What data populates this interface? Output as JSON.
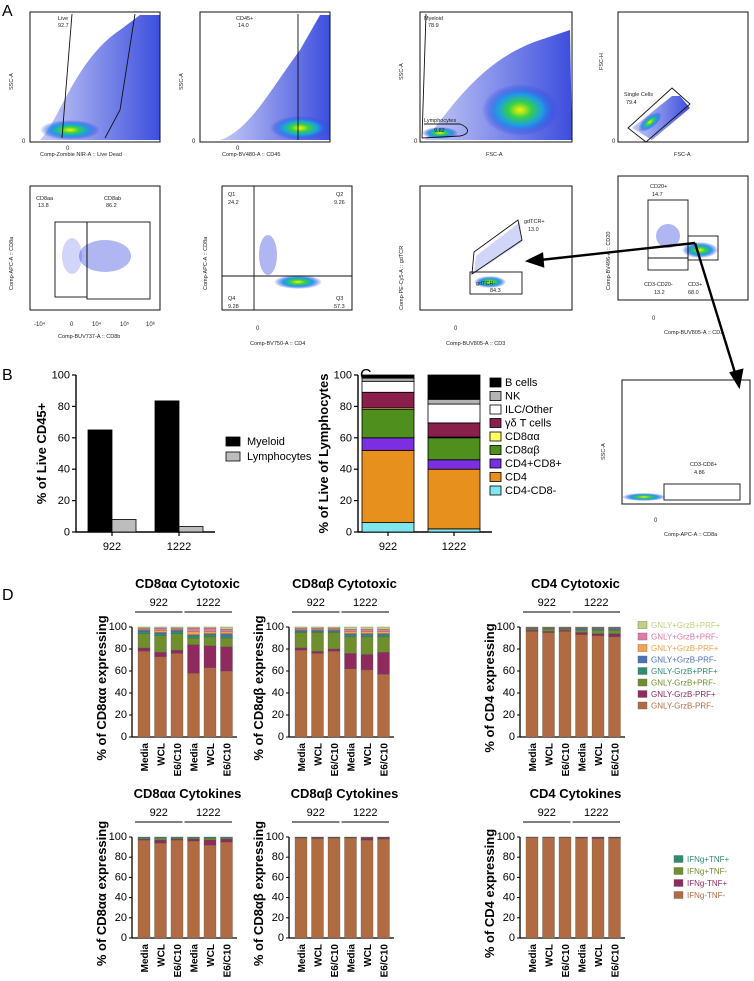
{
  "panel_labels": [
    "A",
    "B",
    "C",
    "D"
  ],
  "flow": {
    "plots": [
      {
        "xlabel": "Comp-Zombie NIR-A :: Live Dead",
        "ylabel": "SSC-A",
        "gates": [
          {
            "name": "Live",
            "value": "92.7"
          }
        ],
        "ticks": [
          "0",
          "0"
        ]
      },
      {
        "xlabel": "Comp-BV480-A :: CD45",
        "ylabel": "SSC-A",
        "gates": [
          {
            "name": "CD45+",
            "value": "14.0"
          }
        ],
        "ticks": [
          "0",
          "0"
        ]
      },
      {
        "xlabel": "FSC-A",
        "ylabel": "SSC-A",
        "gates": [
          {
            "name": "Myeloid",
            "value": "78.9"
          },
          {
            "name": "Lymphocytes",
            "value": "9.82"
          }
        ],
        "ticks": [
          "0",
          "0"
        ]
      },
      {
        "xlabel": "FSC-A",
        "ylabel": "FSC-H",
        "gates": [
          {
            "name": "Single Cells",
            "value": "79.4"
          }
        ],
        "ticks": [
          "0",
          "0"
        ]
      },
      {
        "xlabel": "Comp-BUV737-A :: CD8b",
        "ylabel": "Comp-APC-A :: CD8a",
        "gates": [
          {
            "name": "CD8aa",
            "value": "13.8"
          },
          {
            "name": "CD8ab",
            "value": "86.2"
          }
        ],
        "ticks": [
          "-10⁴",
          "0",
          "10⁴",
          "10⁵",
          "10⁶"
        ]
      },
      {
        "xlabel": "Comp-BV750-A :: CD4",
        "ylabel": "Comp-APC-A :: CD8a",
        "gates": [
          {
            "name": "Q1",
            "value": "24.2"
          },
          {
            "name": "Q2",
            "value": "9.26"
          },
          {
            "name": "Q4",
            "value": "9.28"
          },
          {
            "name": "Q3",
            "value": "57.3"
          }
        ],
        "ticks": [
          "0"
        ]
      },
      {
        "xlabel": "Comp-BUV805-A :: CD3",
        "ylabel": "Comp-PE-Cy5-A :: gdTCR",
        "gates": [
          {
            "name": "gdTCR+",
            "value": "13.0"
          },
          {
            "name": "gdTCR-",
            "value": "84.3"
          }
        ],
        "ticks": [
          "0"
        ]
      },
      {
        "xlabel": "Comp-BUV805-A :: CD3",
        "ylabel": "Comp-BV496-A :: CD20",
        "gates": [
          {
            "name": "CD20+",
            "value": "14.7"
          },
          {
            "name": "CD3-CD20-",
            "value": "13.2"
          },
          {
            "name": "CD3+",
            "value": "68.0"
          }
        ],
        "ticks": [
          "0"
        ]
      },
      {
        "xlabel": "Comp-APC-A :: CD8a",
        "ylabel": "SSC-A",
        "gates": [
          {
            "name": "CD3-CD8+",
            "value": "4.86"
          }
        ],
        "ticks": [
          "0"
        ]
      }
    ]
  },
  "colors": {
    "myeloid": "#000000",
    "lymphocytes": "#bdbdbd",
    "bcells": "#000000",
    "nk": "#b4b4b4",
    "ilc": "#ffffff",
    "gdt": "#8b1f4b",
    "cd8aa": "#ffff66",
    "cd8ab": "#4e8f1e",
    "cd4cd8": "#7b2fe0",
    "cd4": "#e8901e",
    "dn": "#7fe7ee",
    "gnly_pos_grzb_pos_prf_pos": "#c3cf7e",
    "gnly_pos_grzb_pos_prf_neg": "#e07aa6",
    "gnly_pos_grzb_neg_prf_pos": "#f4a24e",
    "gnly_pos_grzb_neg_prf_neg": "#4b6fb8",
    "gnly_neg_grzb_pos_prf_pos": "#2e8c73",
    "gnly_neg_grzb_pos_prf_neg": "#6f8e2c",
    "gnly_neg_grzb_neg_prf_pos": "#8e2a5e",
    "gnly_neg_grzb_neg_prf_neg": "#b06b42",
    "ifng_pos_tnf_pos": "#2e8c73",
    "ifng_pos_tnf_neg": "#6f8e2c",
    "ifng_neg_tnf_pos": "#8e2a5e",
    "ifng_neg_tnf_neg": "#b06b42"
  },
  "chart_data": [
    {
      "id": "B",
      "type": "bar",
      "categories": [
        "922",
        "1222"
      ],
      "series": [
        {
          "name": "Myeloid",
          "color_key": "myeloid",
          "values": [
            65,
            83.5
          ]
        },
        {
          "name": "Lymphocytes",
          "color_key": "lymphocytes",
          "values": [
            8,
            3.5
          ]
        }
      ],
      "ylabel": "% of Live CD45+",
      "ylim": [
        0,
        100
      ],
      "yticks": [
        "0",
        "20",
        "40",
        "60",
        "80",
        "100"
      ]
    },
    {
      "id": "C",
      "type": "bar",
      "categories": [
        "922",
        "1222"
      ],
      "series": [
        {
          "name": "CD4-CD8-",
          "color_key": "dn",
          "values": [
            6,
            2
          ]
        },
        {
          "name": "CD4",
          "color_key": "cd4",
          "values": [
            46,
            38
          ]
        },
        {
          "name": "CD4+CD8+",
          "color_key": "cd4cd8",
          "values": [
            8,
            6
          ]
        },
        {
          "name": "CD8αβ",
          "color_key": "cd8ab",
          "values": [
            18,
            14
          ]
        },
        {
          "name": "CD8αα",
          "color_key": "cd8aa",
          "values": [
            1,
            0.5
          ]
        },
        {
          "name": "γδ T cells",
          "color_key": "gdt",
          "values": [
            10,
            9
          ]
        },
        {
          "name": "ILC/Other",
          "color_key": "ilc",
          "values": [
            7,
            12
          ]
        },
        {
          "name": "NK",
          "color_key": "nk",
          "values": [
            2,
            3
          ]
        },
        {
          "name": "B cells",
          "color_key": "bcells",
          "values": [
            2,
            15.5
          ]
        }
      ],
      "legend_order": [
        "B cells",
        "NK",
        "ILC/Other",
        "γδ T cells",
        "CD8αα",
        "CD8αβ",
        "CD4+CD8+",
        "CD4",
        "CD4-CD8-"
      ],
      "ylabel": "% of Live of Lymphocytes",
      "ylim": [
        0,
        100
      ],
      "yticks": [
        "0",
        "20",
        "40",
        "60",
        "80",
        "100"
      ]
    },
    {
      "id": "D1",
      "type": "bar",
      "title": "CD8αα Cytotoxic",
      "ylabel": "% of CD8αα expressing",
      "groups": [
        "922",
        "1222"
      ],
      "categories": [
        "Media",
        "WCL",
        "E6/C10",
        "Media",
        "WCL",
        "E6/C10"
      ],
      "ylim": [
        0,
        100
      ],
      "yticks": [
        "0",
        "20",
        "40",
        "60",
        "80",
        "100"
      ],
      "series": [
        {
          "name": "GNLY-GrzB-PRF-",
          "color_key": "gnly_neg_grzb_neg_prf_neg",
          "values": [
            78,
            73,
            76,
            58,
            63,
            60
          ]
        },
        {
          "name": "GNLY-GrzB-PRF+",
          "color_key": "gnly_neg_grzb_neg_prf_pos",
          "values": [
            3,
            4,
            3,
            26,
            20,
            22
          ]
        },
        {
          "name": "GNLY-GrzB+PRF-",
          "color_key": "gnly_neg_grzb_pos_prf_neg",
          "values": [
            13,
            15,
            15,
            6,
            8,
            8
          ]
        },
        {
          "name": "GNLY-GrzB+PRF+",
          "color_key": "gnly_neg_grzb_pos_prf_pos",
          "values": [
            2,
            2,
            2,
            2,
            2,
            2
          ]
        },
        {
          "name": "GNLY+GrzB-PRF-",
          "color_key": "gnly_pos_grzb_neg_prf_neg",
          "values": [
            1,
            1,
            1,
            1,
            1,
            2
          ]
        },
        {
          "name": "GNLY+GrzB-PRF+",
          "color_key": "gnly_pos_grzb_neg_prf_pos",
          "values": [
            1,
            2,
            1,
            3,
            2,
            2
          ]
        },
        {
          "name": "GNLY+GrzB+PRF-",
          "color_key": "gnly_pos_grzb_pos_prf_neg",
          "values": [
            1,
            2,
            1,
            3,
            3,
            2
          ]
        },
        {
          "name": "GNLY+GrzB+PRF+",
          "color_key": "gnly_pos_grzb_pos_prf_pos",
          "values": [
            1,
            1,
            1,
            1,
            1,
            2
          ]
        }
      ]
    },
    {
      "id": "D2",
      "type": "bar",
      "title": "CD8αβ Cytotoxic",
      "ylabel": "% of CD8αβ expressing",
      "groups": [
        "922",
        "1222"
      ],
      "categories": [
        "Media",
        "WCL",
        "E6/C10",
        "Media",
        "WCL",
        "E6/C10"
      ],
      "ylim": [
        0,
        100
      ],
      "yticks": [
        "0",
        "20",
        "40",
        "60",
        "80",
        "100"
      ],
      "series": [
        {
          "name": "GNLY-GrzB-PRF-",
          "color_key": "gnly_neg_grzb_neg_prf_neg",
          "values": [
            79,
            76,
            78,
            62,
            61,
            57
          ]
        },
        {
          "name": "GNLY-GrzB-PRF+",
          "color_key": "gnly_neg_grzb_neg_prf_pos",
          "values": [
            2,
            2,
            2,
            14,
            14,
            20
          ]
        },
        {
          "name": "GNLY-GrzB+PRF-",
          "color_key": "gnly_neg_grzb_pos_prf_neg",
          "values": [
            14,
            17,
            15,
            15,
            16,
            14
          ]
        },
        {
          "name": "GNLY-GrzB+PRF+",
          "color_key": "gnly_neg_grzb_pos_prf_pos",
          "values": [
            1,
            1,
            1,
            2,
            2,
            2
          ]
        },
        {
          "name": "GNLY+GrzB-PRF-",
          "color_key": "gnly_pos_grzb_neg_prf_neg",
          "values": [
            1,
            1,
            1,
            1,
            1,
            1
          ]
        },
        {
          "name": "GNLY+GrzB-PRF+",
          "color_key": "gnly_pos_grzb_neg_prf_pos",
          "values": [
            1,
            1,
            1,
            2,
            2,
            2
          ]
        },
        {
          "name": "GNLY+GrzB+PRF-",
          "color_key": "gnly_pos_grzb_pos_prf_neg",
          "values": [
            1,
            1,
            1,
            2,
            2,
            2
          ]
        },
        {
          "name": "GNLY+GrzB+PRF+",
          "color_key": "gnly_pos_grzb_pos_prf_pos",
          "values": [
            1,
            1,
            1,
            2,
            2,
            2
          ]
        }
      ]
    },
    {
      "id": "D3",
      "type": "bar",
      "title": "CD4 Cytotoxic",
      "ylabel": "% of CD4 expressing",
      "groups": [
        "922",
        "1222"
      ],
      "categories": [
        "Media",
        "WCL",
        "E6/C10",
        "Media",
        "WCL",
        "E6/C10"
      ],
      "ylim": [
        0,
        100
      ],
      "yticks": [
        "0",
        "20",
        "40",
        "60",
        "80",
        "100"
      ],
      "series": [
        {
          "name": "GNLY-GrzB-PRF-",
          "color_key": "gnly_neg_grzb_neg_prf_neg",
          "values": [
            96,
            95,
            96,
            93,
            92,
            91
          ]
        },
        {
          "name": "GNLY-GrzB-PRF+",
          "color_key": "gnly_neg_grzb_neg_prf_pos",
          "values": [
            1,
            1,
            1,
            2,
            2,
            3
          ]
        },
        {
          "name": "GNLY-GrzB+PRF-",
          "color_key": "gnly_neg_grzb_pos_prf_neg",
          "values": [
            1,
            2,
            1,
            2,
            3,
            3
          ]
        },
        {
          "name": "GNLY-GrzB+PRF+",
          "color_key": "gnly_neg_grzb_pos_prf_pos",
          "values": [
            0.5,
            0.5,
            0.5,
            1,
            1,
            1
          ]
        },
        {
          "name": "GNLY+GrzB-PRF-",
          "color_key": "gnly_pos_grzb_neg_prf_neg",
          "values": [
            0.5,
            0.5,
            0.5,
            1,
            1,
            1
          ]
        },
        {
          "name": "GNLY+GrzB-PRF+",
          "color_key": "gnly_pos_grzb_neg_prf_pos",
          "values": [
            0.5,
            0.5,
            0.5,
            0.5,
            0.5,
            0.5
          ]
        },
        {
          "name": "GNLY+GrzB+PRF-",
          "color_key": "gnly_pos_grzb_pos_prf_neg",
          "values": [
            0.3,
            0.3,
            0.3,
            0.3,
            0.3,
            0.3
          ]
        },
        {
          "name": "GNLY+GrzB+PRF+",
          "color_key": "gnly_pos_grzb_pos_prf_pos",
          "values": [
            0.2,
            0.2,
            0.2,
            0.2,
            0.2,
            0.2
          ]
        }
      ]
    },
    {
      "id": "D4",
      "type": "bar",
      "title": "CD8αα Cytokines",
      "ylabel": "% of CD8αα expressing",
      "groups": [
        "922",
        "1222"
      ],
      "categories": [
        "Media",
        "WCL",
        "E6/C10",
        "Media",
        "WCL",
        "E6/C10"
      ],
      "ylim": [
        0,
        100
      ],
      "yticks": [
        "0",
        "20",
        "40",
        "60",
        "80",
        "100"
      ],
      "series": [
        {
          "name": "IFNg-TNF-",
          "color_key": "ifng_neg_tnf_neg",
          "values": [
            97,
            94,
            97,
            96,
            92,
            95
          ]
        },
        {
          "name": "IFNg-TNF+",
          "color_key": "ifng_neg_tnf_pos",
          "values": [
            1,
            3,
            1,
            2,
            5,
            3
          ]
        },
        {
          "name": "IFNg+TNF-",
          "color_key": "ifng_pos_tnf_neg",
          "values": [
            1,
            2,
            1,
            1,
            2,
            1
          ]
        },
        {
          "name": "IFNg+TNF+",
          "color_key": "ifng_pos_tnf_pos",
          "values": [
            1,
            1,
            1,
            1,
            1,
            1
          ]
        }
      ]
    },
    {
      "id": "D5",
      "type": "bar",
      "title": "CD8αβ Cytokines",
      "ylabel": "% of CD8αβ expressing",
      "groups": [
        "922",
        "1222"
      ],
      "categories": [
        "Media",
        "WCL",
        "E6/C10",
        "Media",
        "WCL",
        "E6/C10"
      ],
      "ylim": [
        0,
        100
      ],
      "yticks": [
        "0",
        "20",
        "40",
        "60",
        "80",
        "100"
      ],
      "series": [
        {
          "name": "IFNg-TNF-",
          "color_key": "ifng_neg_tnf_neg",
          "values": [
            99,
            98.5,
            99,
            99,
            97,
            98
          ]
        },
        {
          "name": "IFNg-TNF+",
          "color_key": "ifng_neg_tnf_pos",
          "values": [
            0.5,
            1,
            0.5,
            0.5,
            2,
            1.5
          ]
        },
        {
          "name": "IFNg+TNF-",
          "color_key": "ifng_pos_tnf_neg",
          "values": [
            0.3,
            0.3,
            0.3,
            0.3,
            0.6,
            0.3
          ]
        },
        {
          "name": "IFNg+TNF+",
          "color_key": "ifng_pos_tnf_pos",
          "values": [
            0.2,
            0.2,
            0.2,
            0.2,
            0.4,
            0.2
          ]
        }
      ]
    },
    {
      "id": "D6",
      "type": "bar",
      "title": "CD4 Cytokines",
      "ylabel": "% of CD4 expressing",
      "groups": [
        "922",
        "1222"
      ],
      "categories": [
        "Media",
        "WCL",
        "E6/C10",
        "Media",
        "WCL",
        "E6/C10"
      ],
      "ylim": [
        0,
        100
      ],
      "yticks": [
        "0",
        "20",
        "40",
        "60",
        "80",
        "100"
      ],
      "series": [
        {
          "name": "IFNg-TNF-",
          "color_key": "ifng_neg_tnf_neg",
          "values": [
            99.5,
            99.5,
            99.5,
            99,
            98.5,
            99
          ]
        },
        {
          "name": "IFNg-TNF+",
          "color_key": "ifng_neg_tnf_pos",
          "values": [
            0.3,
            0.3,
            0.3,
            0.6,
            1,
            0.6
          ]
        },
        {
          "name": "IFNg+TNF-",
          "color_key": "ifng_pos_tnf_neg",
          "values": [
            0.1,
            0.1,
            0.1,
            0.2,
            0.3,
            0.2
          ]
        },
        {
          "name": "IFNg+TNF+",
          "color_key": "ifng_pos_tnf_pos",
          "values": [
            0.1,
            0.1,
            0.1,
            0.2,
            0.2,
            0.2
          ]
        }
      ]
    }
  ],
  "legend_cytotoxic": [
    "GNLY+GrzB+PRF+",
    "GNLY+GrzB+PRF-",
    "GNLY+GrzB-PRF+",
    "GNLY+GrzB-PRF-",
    "GNLY-GrzB+PRF+",
    "GNLY-GrzB+PRF-",
    "GNLY-GrzB-PRF+",
    "GNLY-GrzB-PRF-"
  ],
  "legend_cytokines": [
    "IFNg+TNF+",
    "IFNg+TNF-",
    "IFNg-TNF+",
    "IFNg-TNF-"
  ]
}
